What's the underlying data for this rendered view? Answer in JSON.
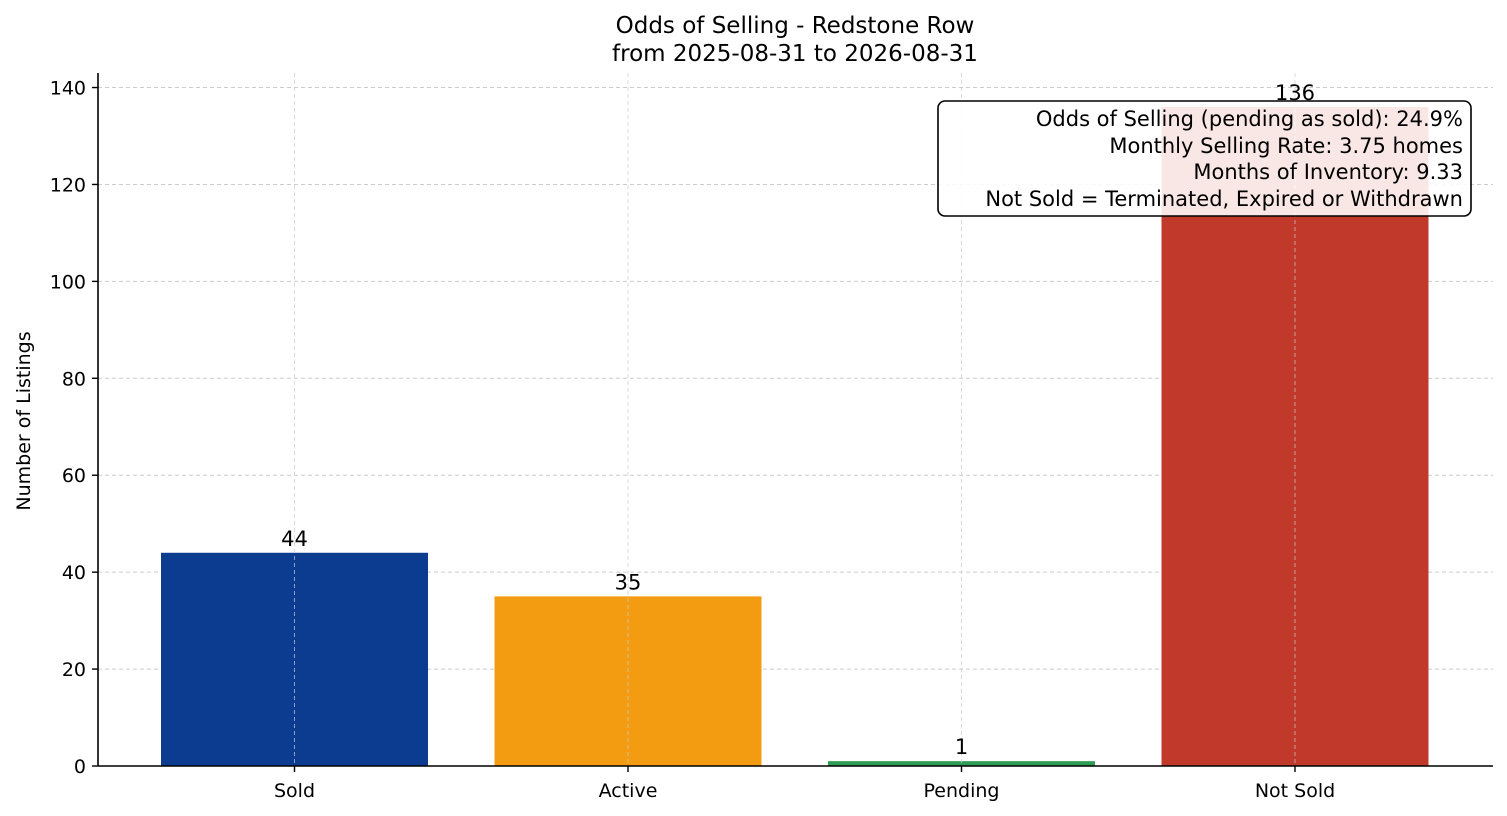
{
  "chart_data": {
    "type": "bar",
    "title": "Odds of Selling - Redstone Row",
    "subtitle": "from 2025-08-31 to 2026-08-31",
    "xlabel": "",
    "ylabel": "Number of Listings",
    "categories": [
      "Sold",
      "Active",
      "Pending",
      "Not Sold"
    ],
    "values": [
      44,
      35,
      1,
      136
    ],
    "value_labels": [
      "44",
      "35",
      "1",
      "136"
    ],
    "colors": [
      "#0b3c8f",
      "#f39c12",
      "#2e9e55",
      "#c0392b"
    ],
    "ylim": [
      0,
      143
    ],
    "yticks": [
      0,
      20,
      40,
      60,
      80,
      100,
      120,
      140
    ],
    "grid": true,
    "annotation": {
      "lines": [
        "Odds of Selling (pending as sold): 24.9%",
        "Monthly Selling Rate: 3.75 homes",
        "Months of Inventory: 9.33",
        "Not Sold = Terminated, Expired or Withdrawn"
      ],
      "placement": "top-right"
    }
  }
}
